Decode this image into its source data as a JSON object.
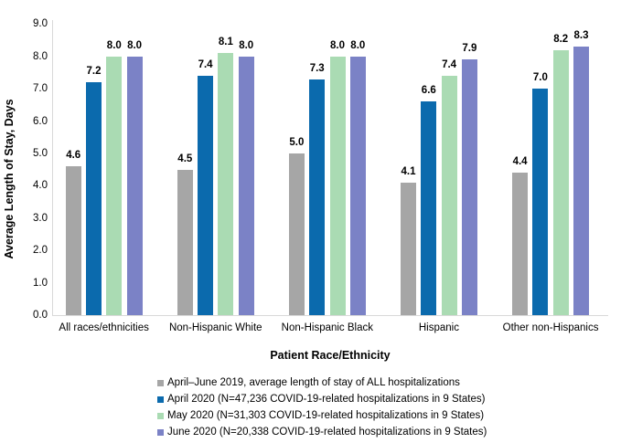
{
  "chart_data": {
    "type": "bar",
    "title": "",
    "xlabel": "Patient Race/Ethnicity",
    "ylabel": "Average Length of Stay, Days",
    "categories": [
      "All races/ethnicities",
      "Non-Hispanic White",
      "Non-Hispanic Black",
      "Hispanic",
      "Other non-Hispanics"
    ],
    "series": [
      {
        "name": "April–June 2019, average length of stay of ALL hospitalizations",
        "color": "#A6A6A6",
        "values": [
          4.6,
          4.5,
          5.0,
          4.1,
          4.4
        ]
      },
      {
        "name": "April 2020 (N=47,236 COVID-19-related hospitalizations in 9 States)",
        "color": "#0B6AAD",
        "values": [
          7.2,
          7.4,
          7.3,
          6.6,
          7.0
        ]
      },
      {
        "name": "May 2020 (N=31,303 COVID-19-related hospitalizations in 9 States)",
        "color": "#AADBB3",
        "values": [
          8.0,
          8.1,
          8.0,
          7.4,
          8.2
        ]
      },
      {
        "name": "June 2020 (N=20,338 COVID-19-related hospitalizations in 9 States)",
        "color": "#7B82C6",
        "values": [
          8.0,
          8.0,
          8.0,
          7.9,
          8.3
        ]
      }
    ],
    "ylim": [
      0,
      9
    ],
    "ytick_labels": [
      "0.0",
      "1.0",
      "2.0",
      "3.0",
      "4.0",
      "5.0",
      "6.0",
      "7.0",
      "8.0",
      "9.0"
    ],
    "value_labels": true,
    "grid": false,
    "legend_position": "bottom",
    "axis_line_color": "#D9D9D9",
    "text_color": "#000000",
    "background_color": "#FFFFFF"
  }
}
